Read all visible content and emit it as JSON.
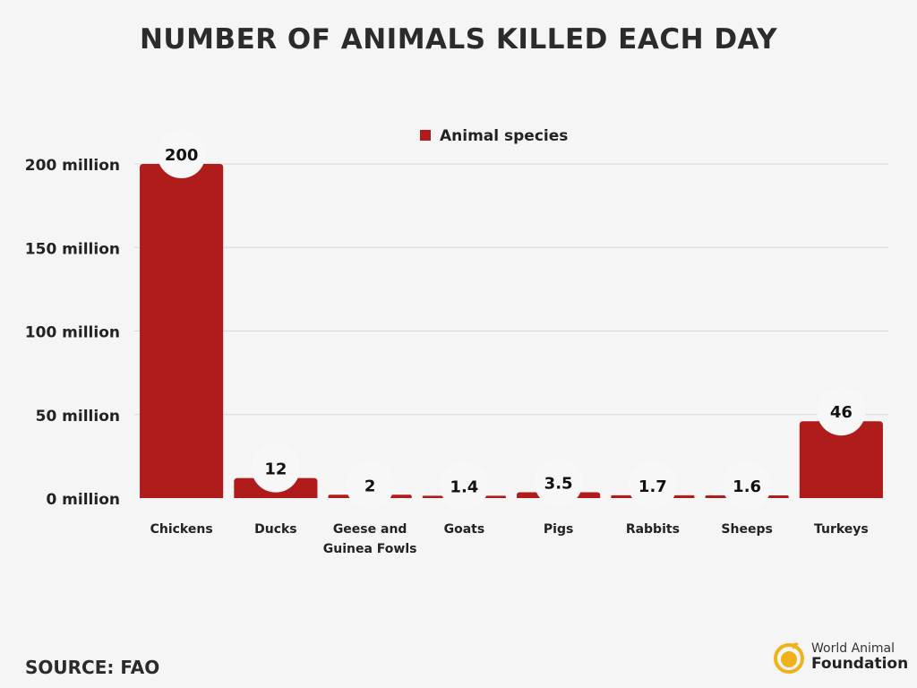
{
  "chart_data": {
    "type": "bar",
    "title": "NUMBER OF ANIMALS KILLED EACH DAY",
    "categories": [
      "Chickens",
      "Ducks",
      "Geese and Guinea Fowls",
      "Goats",
      "Pigs",
      "Rabbits",
      "Sheeps",
      "Turkeys"
    ],
    "series": [
      {
        "name": "Animal species",
        "values": [
          200,
          12,
          2,
          1.4,
          3.5,
          1.7,
          1.6,
          46
        ],
        "labels": [
          "200",
          "12",
          "2",
          "1.4",
          "3.5",
          "1.7",
          "1.6",
          "46"
        ]
      }
    ],
    "yticks": [
      0,
      50,
      100,
      150,
      200
    ],
    "ytick_labels": [
      "0 million",
      "50 million",
      "100 million",
      "150 million",
      "200 million"
    ],
    "ylim": [
      0,
      200
    ],
    "grid": true,
    "legend": "top",
    "bar_color": "#b01c1c"
  },
  "footer": {
    "source": "SOURCE: FAO",
    "logo_line1": "World Animal",
    "logo_line2": "Foundation"
  }
}
